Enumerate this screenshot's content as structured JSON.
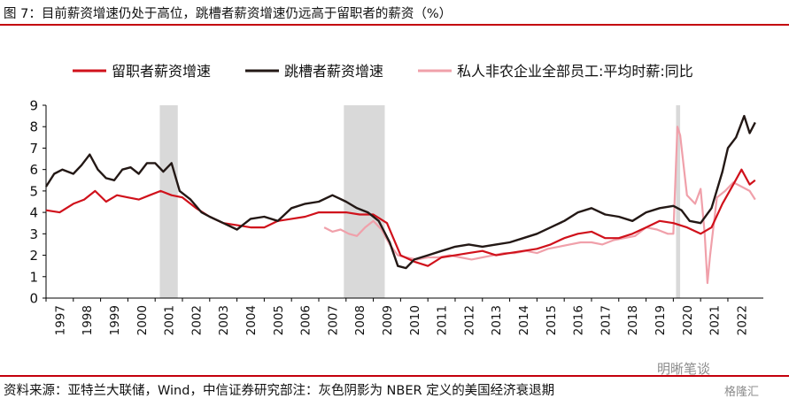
{
  "header": {
    "title": "图 7：目前薪资增速仍处于高位，跳槽者薪资增速仍远高于留职者的薪资（%）"
  },
  "footer": {
    "source": "资料来源：亚特兰大联储，Wind，中信证券研究部注：灰色阴影为 NBER 定义的美国经济衰退期"
  },
  "watermark": {
    "text1": "明晰笔谈",
    "text2": "格隆汇"
  },
  "colors": {
    "stayer": "#d0111b",
    "switcher": "#231815",
    "private": "#f0a0aa",
    "recession": "#d9d9d9",
    "accent": "#c4000c"
  },
  "chart_data": {
    "type": "line",
    "title": "",
    "xlabel": "",
    "ylabel": "",
    "xlim": [
      1997,
      2023.3
    ],
    "ylim": [
      0,
      9
    ],
    "yticks": [
      0,
      1,
      2,
      3,
      4,
      5,
      6,
      7,
      8,
      9
    ],
    "xticks": [
      "1997",
      "1998",
      "1999",
      "2000",
      "2001",
      "2002",
      "2003",
      "2004",
      "2005",
      "2006",
      "2007",
      "2008",
      "2009",
      "2010",
      "2011",
      "2012",
      "2013",
      "2014",
      "2015",
      "2016",
      "2017",
      "2018",
      "2019",
      "2020",
      "2021",
      "2022"
    ],
    "grid": false,
    "legend_position": "top",
    "recessions": [
      [
        2001.17,
        2001.83
      ],
      [
        2007.92,
        2009.42
      ],
      [
        2020.1,
        2020.25
      ]
    ],
    "series": [
      {
        "name": "留职者薪资增速",
        "key": "stayer",
        "x": [
          1997.0,
          1997.5,
          1998.0,
          1998.4,
          1998.8,
          1999.2,
          1999.6,
          2000.0,
          2000.4,
          2000.8,
          2001.2,
          2001.6,
          2002.0,
          2002.5,
          2003.0,
          2003.5,
          2004.0,
          2004.5,
          2005.0,
          2005.5,
          2006.0,
          2006.5,
          2007.0,
          2007.5,
          2008.0,
          2008.5,
          2009.0,
          2009.5,
          2010.0,
          2010.5,
          2011.0,
          2011.5,
          2012.0,
          2012.5,
          2013.0,
          2013.5,
          2014.0,
          2014.5,
          2015.0,
          2015.5,
          2016.0,
          2016.5,
          2017.0,
          2017.5,
          2018.0,
          2018.5,
          2019.0,
          2019.5,
          2020.0,
          2020.5,
          2021.0,
          2021.4,
          2021.8,
          2022.2,
          2022.5,
          2022.8,
          2023.0
        ],
        "values": [
          4.1,
          4.0,
          4.4,
          4.6,
          5.0,
          4.5,
          4.8,
          4.7,
          4.6,
          4.8,
          5.0,
          4.8,
          4.7,
          4.2,
          3.8,
          3.5,
          3.4,
          3.3,
          3.3,
          3.6,
          3.7,
          3.8,
          4.0,
          4.0,
          4.0,
          3.9,
          3.9,
          3.5,
          2.0,
          1.7,
          1.5,
          1.9,
          2.0,
          2.1,
          2.2,
          2.0,
          2.1,
          2.2,
          2.3,
          2.5,
          2.8,
          3.0,
          3.1,
          2.8,
          2.8,
          3.0,
          3.3,
          3.6,
          3.5,
          3.3,
          3.0,
          3.3,
          4.4,
          5.3,
          6.0,
          5.3,
          5.5
        ]
      },
      {
        "name": "跳槽者薪资增速",
        "key": "switcher",
        "x": [
          1997.0,
          1997.3,
          1997.6,
          1998.0,
          1998.3,
          1998.6,
          1998.9,
          1999.2,
          1999.5,
          1999.8,
          2000.1,
          2000.4,
          2000.7,
          2001.0,
          2001.3,
          2001.6,
          2001.9,
          2002.3,
          2002.7,
          2003.0,
          2003.5,
          2004.0,
          2004.5,
          2005.0,
          2005.5,
          2006.0,
          2006.5,
          2007.0,
          2007.5,
          2008.0,
          2008.4,
          2008.8,
          2009.2,
          2009.6,
          2009.9,
          2010.2,
          2010.5,
          2011.0,
          2011.5,
          2012.0,
          2012.5,
          2013.0,
          2013.5,
          2014.0,
          2014.5,
          2015.0,
          2015.5,
          2016.0,
          2016.5,
          2017.0,
          2017.5,
          2018.0,
          2018.5,
          2019.0,
          2019.5,
          2020.0,
          2020.3,
          2020.6,
          2021.0,
          2021.4,
          2021.8,
          2022.0,
          2022.3,
          2022.6,
          2022.8,
          2023.0
        ],
        "values": [
          5.2,
          5.8,
          6.0,
          5.8,
          6.2,
          6.7,
          6.0,
          5.6,
          5.5,
          6.0,
          6.1,
          5.8,
          6.3,
          6.3,
          5.9,
          6.3,
          5.0,
          4.6,
          4.0,
          3.8,
          3.5,
          3.2,
          3.7,
          3.8,
          3.6,
          4.2,
          4.4,
          4.5,
          4.8,
          4.5,
          4.2,
          4.0,
          3.6,
          2.6,
          1.5,
          1.4,
          1.8,
          2.0,
          2.2,
          2.4,
          2.5,
          2.4,
          2.5,
          2.6,
          2.8,
          3.0,
          3.3,
          3.6,
          4.0,
          4.2,
          3.9,
          3.8,
          3.6,
          4.0,
          4.2,
          4.3,
          4.1,
          3.6,
          3.5,
          4.2,
          5.9,
          7.0,
          7.5,
          8.5,
          7.7,
          8.2
        ]
      },
      {
        "name": "私人非农企业全部员工:平均时薪:同比",
        "key": "private",
        "x": [
          2007.2,
          2007.5,
          2007.8,
          2008.1,
          2008.4,
          2008.7,
          2009.0,
          2009.3,
          2009.6,
          2009.9,
          2010.2,
          2010.6,
          2011.0,
          2011.4,
          2011.8,
          2012.2,
          2012.6,
          2013.0,
          2013.4,
          2013.8,
          2014.2,
          2014.6,
          2015.0,
          2015.4,
          2015.8,
          2016.2,
          2016.6,
          2017.0,
          2017.4,
          2017.8,
          2018.2,
          2018.6,
          2019.0,
          2019.4,
          2019.8,
          2020.0,
          2020.15,
          2020.25,
          2020.5,
          2020.8,
          2021.0,
          2021.15,
          2021.25,
          2021.35,
          2021.6,
          2021.9,
          2022.2,
          2022.5,
          2022.8,
          2023.0
        ],
        "values": [
          3.3,
          3.1,
          3.2,
          3.0,
          2.9,
          3.3,
          3.6,
          3.2,
          2.5,
          2.0,
          1.9,
          1.8,
          1.9,
          1.9,
          2.0,
          1.9,
          1.8,
          1.9,
          2.0,
          2.1,
          2.1,
          2.2,
          2.1,
          2.3,
          2.4,
          2.5,
          2.6,
          2.6,
          2.5,
          2.7,
          2.8,
          2.9,
          3.3,
          3.2,
          3.0,
          3.0,
          8.0,
          7.6,
          4.8,
          4.4,
          5.1,
          3.0,
          0.7,
          2.0,
          4.7,
          5.0,
          5.4,
          5.2,
          5.0,
          4.6
        ]
      }
    ]
  }
}
